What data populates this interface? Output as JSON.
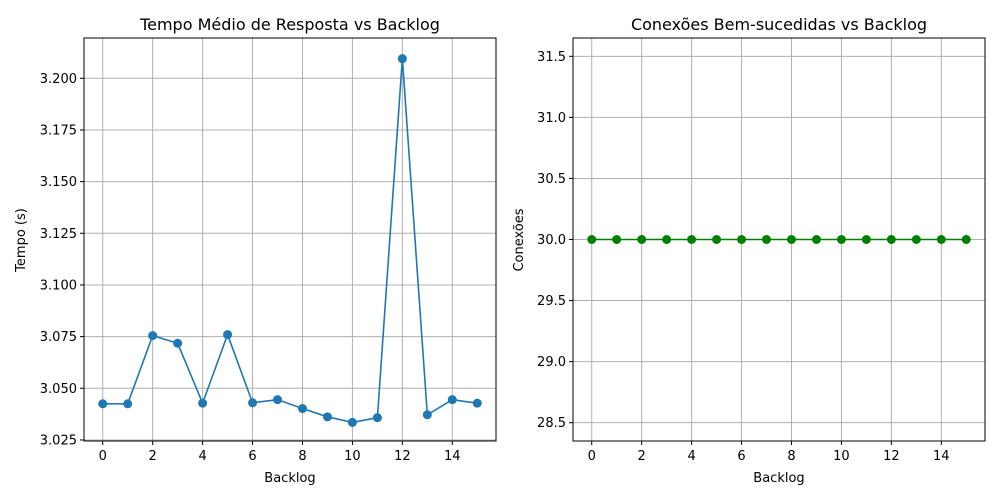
{
  "chart_data": [
    {
      "type": "line",
      "title": "Tempo Médio de Resposta vs Backlog",
      "xlabel": "Backlog",
      "ylabel": "Tempo (s)",
      "xlim": [
        -0.75,
        15.75
      ],
      "ylim": [
        3.0245,
        3.2195
      ],
      "xticks": [
        0,
        2,
        4,
        6,
        8,
        10,
        12,
        14
      ],
      "xtick_labels": [
        "0",
        "2",
        "4",
        "6",
        "8",
        "10",
        "12",
        "14"
      ],
      "yticks": [
        3.025,
        3.05,
        3.075,
        3.1,
        3.125,
        3.15,
        3.175,
        3.2
      ],
      "ytick_labels": [
        "3.025",
        "3.050",
        "3.075",
        "3.100",
        "3.125",
        "3.150",
        "3.175",
        "3.200"
      ],
      "grid": true,
      "series": [
        {
          "color": "#1f77b4",
          "marker": "circle",
          "x": [
            0,
            1,
            2,
            3,
            4,
            5,
            6,
            7,
            8,
            9,
            10,
            11,
            12,
            13,
            14,
            15
          ],
          "y": [
            3.0425,
            3.0425,
            3.0755,
            3.0718,
            3.0428,
            3.076,
            3.043,
            3.0445,
            3.0402,
            3.0362,
            3.0335,
            3.0358,
            3.2095,
            3.0372,
            3.0445,
            3.0428
          ]
        }
      ]
    },
    {
      "type": "line",
      "title": "Conexões Bem-sucedidas vs Backlog",
      "xlabel": "Backlog",
      "ylabel": "Conexões",
      "xlim": [
        -0.75,
        15.75
      ],
      "ylim": [
        28.35,
        31.65
      ],
      "xticks": [
        0,
        2,
        4,
        6,
        8,
        10,
        12,
        14
      ],
      "xtick_labels": [
        "0",
        "2",
        "4",
        "6",
        "8",
        "10",
        "12",
        "14"
      ],
      "yticks": [
        28.5,
        29.0,
        29.5,
        30.0,
        30.5,
        31.0,
        31.5
      ],
      "ytick_labels": [
        "28.5",
        "29.0",
        "29.5",
        "30.0",
        "30.5",
        "31.0",
        "31.5"
      ],
      "grid": true,
      "series": [
        {
          "color": "#008000",
          "marker": "circle",
          "x": [
            0,
            1,
            2,
            3,
            4,
            5,
            6,
            7,
            8,
            9,
            10,
            11,
            12,
            13,
            14,
            15
          ],
          "y": [
            30,
            30,
            30,
            30,
            30,
            30,
            30,
            30,
            30,
            30,
            30,
            30,
            30,
            30,
            30,
            30
          ]
        }
      ]
    }
  ]
}
